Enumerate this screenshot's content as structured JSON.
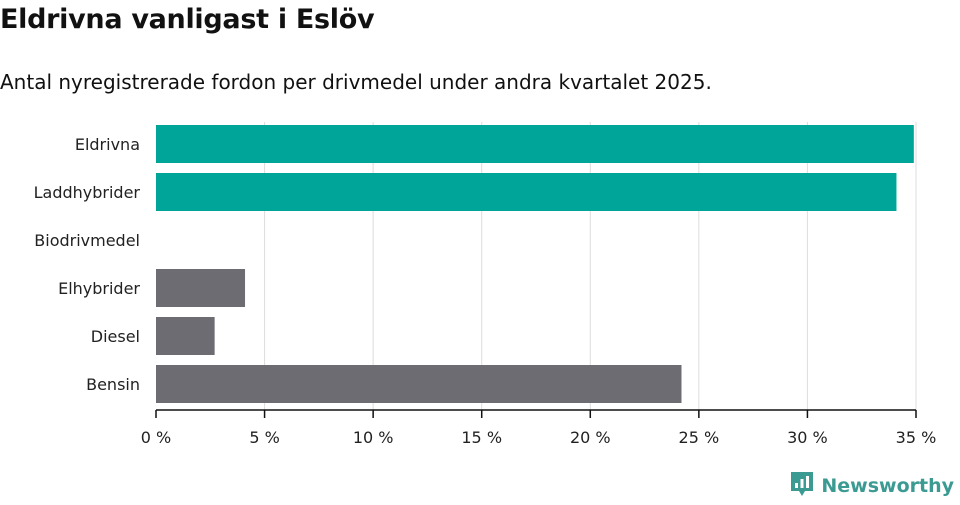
{
  "header": {
    "title": "Eldrivna vanligast i Eslöv",
    "subtitle": "Antal nyregistrerade fordon per drivmedel under andra kvartalet 2025."
  },
  "brand": {
    "name": "Newsworthy",
    "color": "#3b9a92",
    "icon": "newsworthy-logo-icon"
  },
  "chart_data": {
    "type": "bar",
    "orientation": "horizontal",
    "title": "",
    "xlabel": "",
    "ylabel": "",
    "categories": [
      "Eldrivna",
      "Laddhybrider",
      "Biodrivmedel",
      "Elhybrider",
      "Diesel",
      "Bensin"
    ],
    "values": [
      34.9,
      34.1,
      0,
      4.1,
      2.7,
      24.2
    ],
    "unit": "%",
    "xlim": [
      0,
      35
    ],
    "ticks": [
      0,
      5,
      10,
      15,
      20,
      25,
      30,
      35
    ],
    "tick_labels": [
      "0 %",
      "5 %",
      "10 %",
      "15 %",
      "20 %",
      "25 %",
      "30 %",
      "35 %"
    ],
    "colors": [
      "#00a59a",
      "#00a59a",
      "#00a59a",
      "#6d6c73",
      "#6d6c73",
      "#6d6c73"
    ],
    "grid": true,
    "legend": "none"
  }
}
